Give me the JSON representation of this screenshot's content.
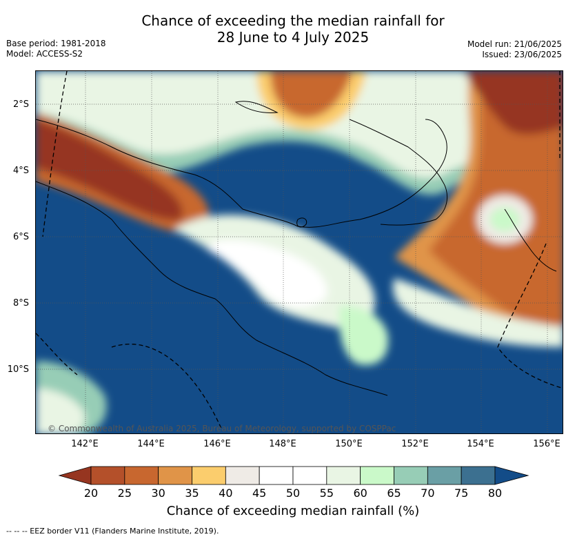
{
  "title": {
    "line1": "Chance of exceeding the median rainfall for",
    "line2": "28 June to 4 July 2025"
  },
  "meta_left": {
    "base_period": "Base period: 1981-2018",
    "model": "Model: ACCESS-S2"
  },
  "meta_right": {
    "model_run": "Model run: 21/06/2025",
    "issued": "Issued: 23/06/2025"
  },
  "copyright": "© Commonwealth of Australia 2025, Bureau of Meteorology, supported by COSPPac",
  "lat_labels": [
    "2°S",
    "4°S",
    "6°S",
    "8°S",
    "10°S"
  ],
  "lon_labels": [
    "142°E",
    "144°E",
    "146°E",
    "148°E",
    "150°E",
    "152°E",
    "154°E",
    "156°E"
  ],
  "colorbar": {
    "ticks": [
      "20",
      "25",
      "30",
      "35",
      "40",
      "45",
      "50",
      "55",
      "60",
      "65",
      "70",
      "75",
      "80"
    ],
    "colors": [
      "#963520",
      "#b4502a",
      "#c8672f",
      "#e09448",
      "#fbcd6d",
      "#efebe6",
      "#ffffff",
      "#ffffff",
      "#e9f5e4",
      "#caf9c9",
      "#97cdb6",
      "#6a9fa5",
      "#3c7090",
      "#134c88"
    ],
    "label": "Chance of exceeding median rainfall (%)"
  },
  "footnote": "--  --  -- EEZ border V11 (Flanders Marine Institute, 2019)."
}
